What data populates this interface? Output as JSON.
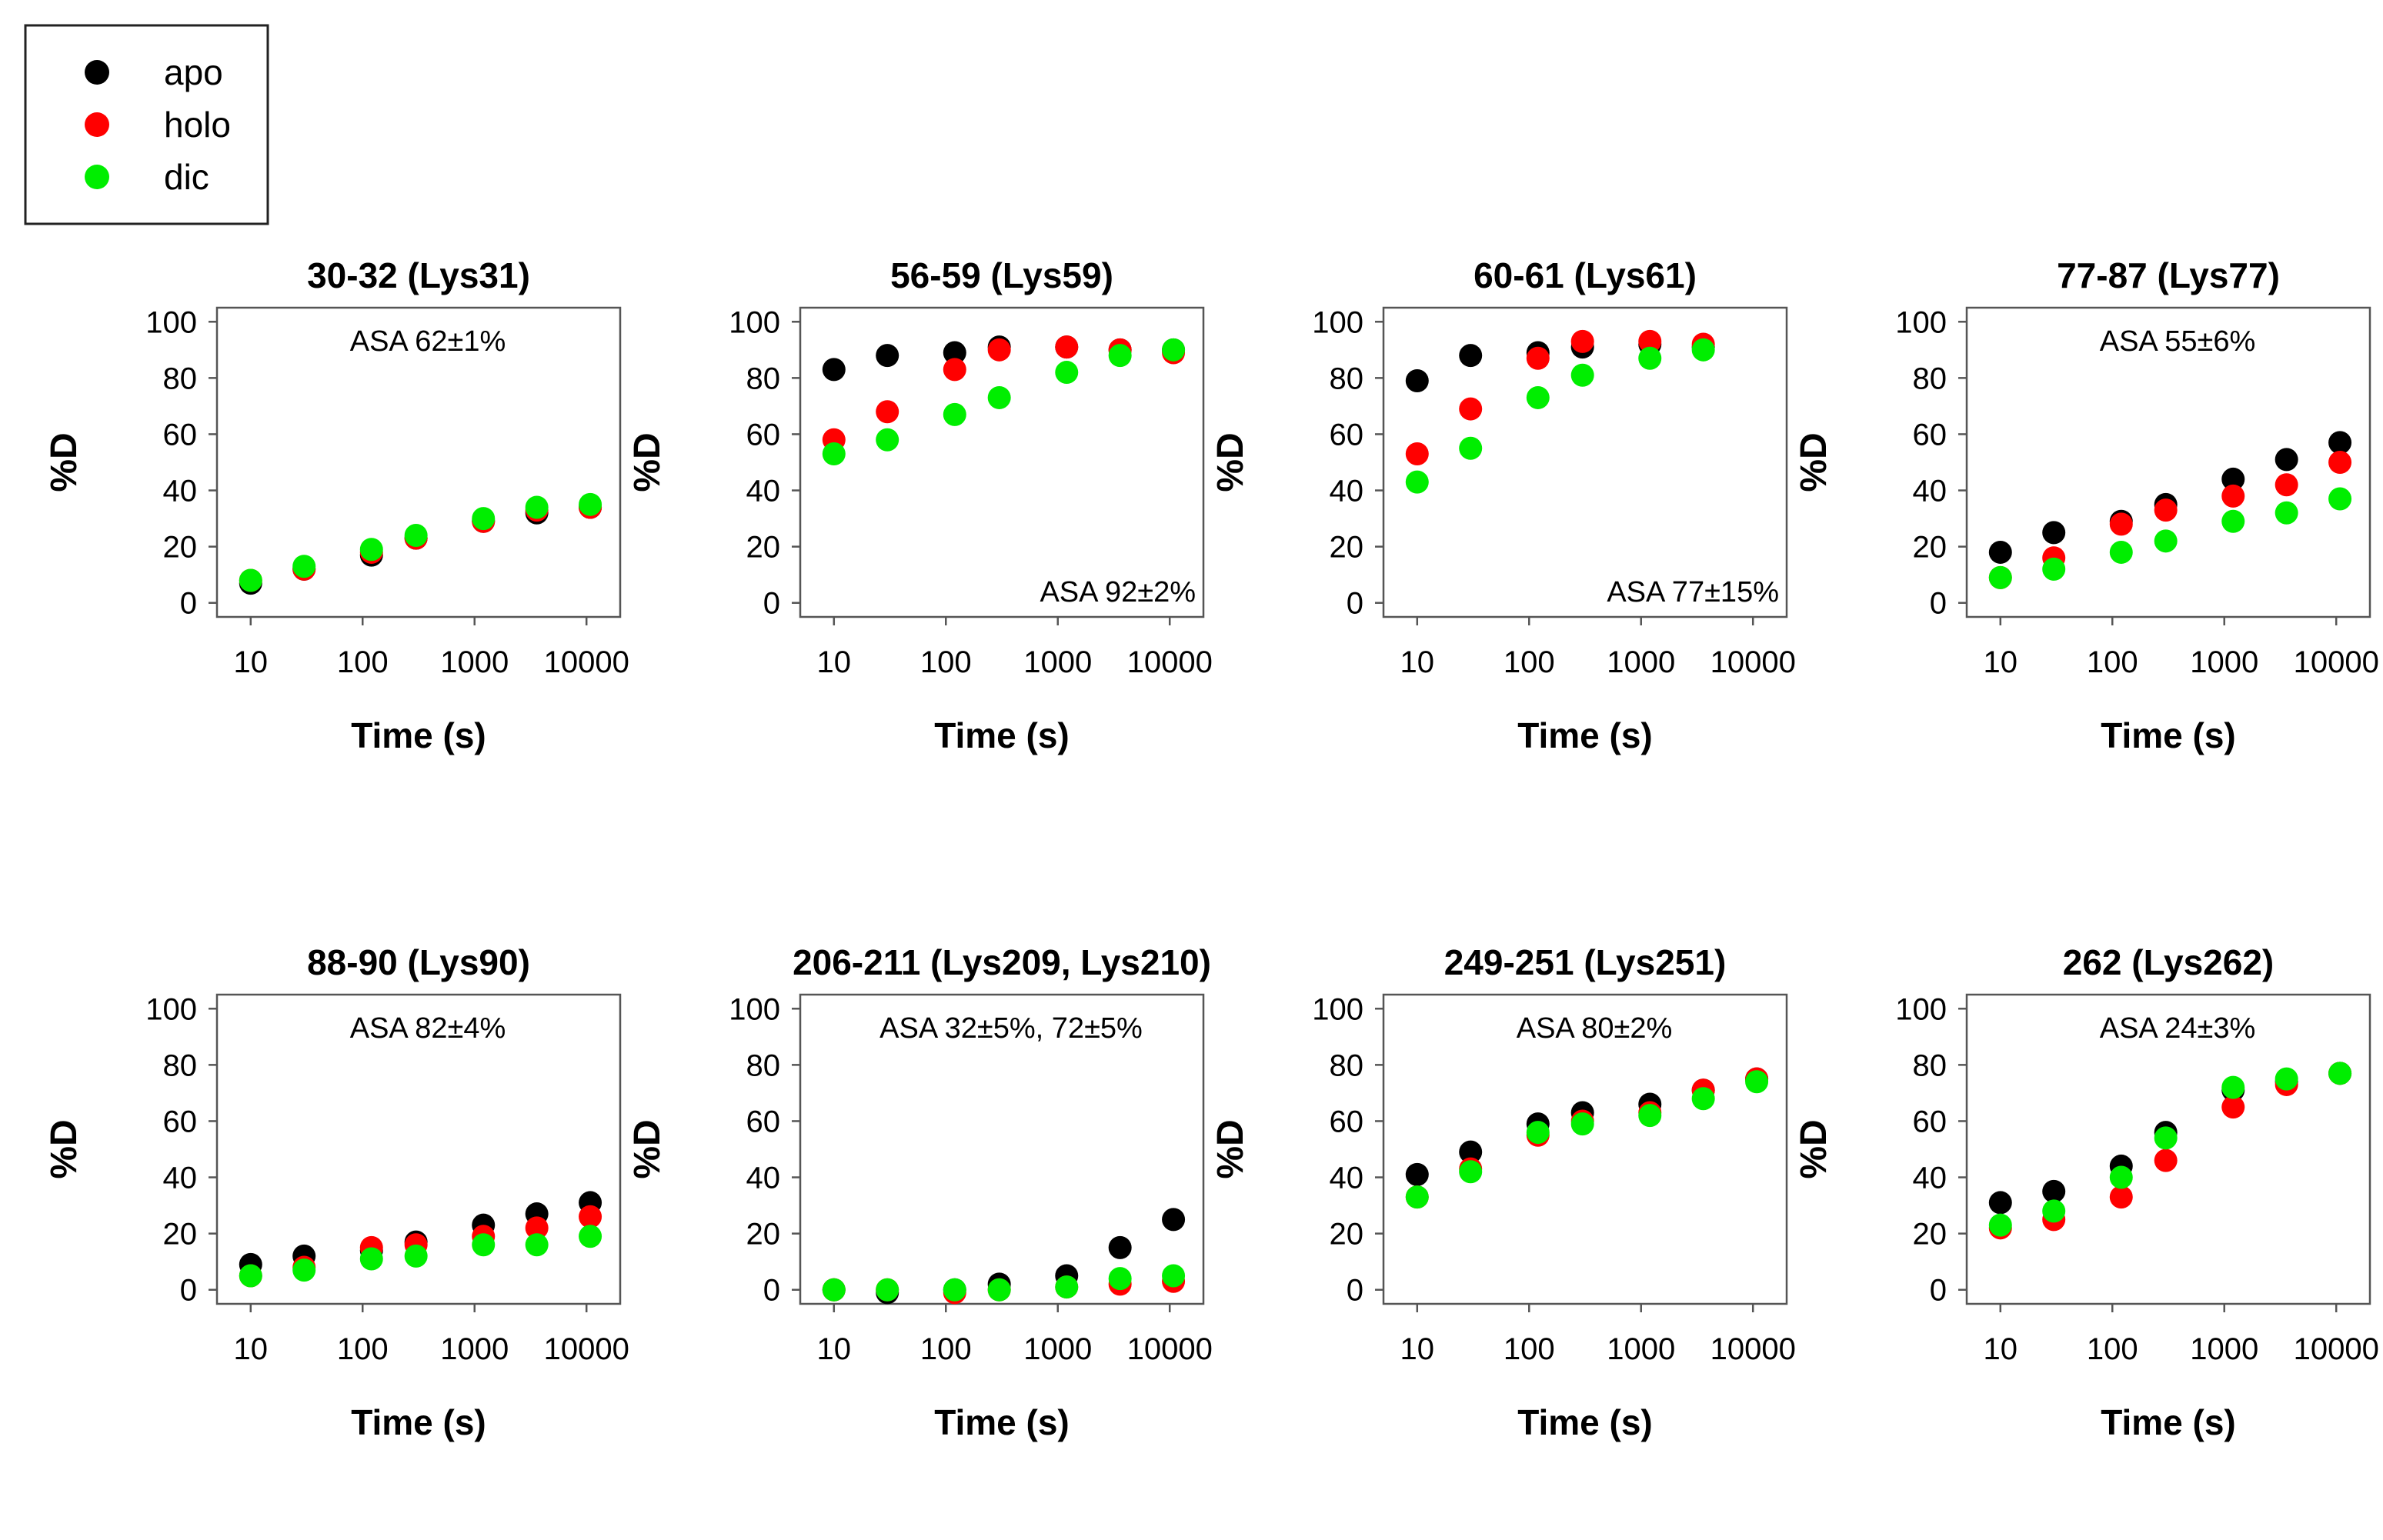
{
  "legend": {
    "items": [
      {
        "label": "apo",
        "color": "#000000"
      },
      {
        "label": "holo",
        "color": "#ff0000"
      },
      {
        "label": "dic",
        "color": "#00ee00"
      }
    ]
  },
  "chart_data": [
    {
      "type": "scatter",
      "title": "30-32 (Lys31)",
      "xlabel": "Time (s)",
      "ylabel": "%D",
      "xscale": "log",
      "xlim": [
        5,
        20000
      ],
      "ylim": [
        -5,
        105
      ],
      "xticks": [
        "10",
        "100",
        "1000",
        "10000"
      ],
      "yticks": [
        "0",
        "20",
        "40",
        "60",
        "80",
        "100"
      ],
      "annotation": "ASA 62±1%",
      "annotation_position": "top",
      "x": [
        10,
        30,
        120,
        300,
        1200,
        3600,
        10800
      ],
      "series": [
        {
          "name": "apo",
          "values": [
            7,
            12,
            17,
            23,
            29,
            32,
            34
          ]
        },
        {
          "name": "holo",
          "values": [
            8,
            12,
            18,
            23,
            29,
            33,
            34
          ]
        },
        {
          "name": "dic",
          "values": [
            8,
            13,
            19,
            24,
            30,
            34,
            35
          ]
        }
      ]
    },
    {
      "type": "scatter",
      "title": "56-59 (Lys59)",
      "xlabel": "Time (s)",
      "ylabel": "%D",
      "xscale": "log",
      "xlim": [
        5,
        20000
      ],
      "ylim": [
        -5,
        105
      ],
      "xticks": [
        "10",
        "100",
        "1000",
        "10000"
      ],
      "yticks": [
        "0",
        "20",
        "40",
        "60",
        "80",
        "100"
      ],
      "annotation": "ASA 92±2%",
      "annotation_position": "bottom-right",
      "x": [
        10,
        30,
        120,
        300,
        1200,
        3600,
        10800
      ],
      "series": [
        {
          "name": "apo",
          "values": [
            83,
            88,
            89,
            91,
            91,
            90,
            90
          ]
        },
        {
          "name": "holo",
          "values": [
            58,
            68,
            83,
            90,
            91,
            90,
            89
          ]
        },
        {
          "name": "dic",
          "values": [
            53,
            58,
            67,
            73,
            82,
            88,
            90
          ]
        }
      ]
    },
    {
      "type": "scatter",
      "title": "60-61 (Lys61)",
      "xlabel": "Time (s)",
      "ylabel": "%D",
      "xscale": "log",
      "xlim": [
        5,
        20000
      ],
      "ylim": [
        -5,
        105
      ],
      "xticks": [
        "10",
        "100",
        "1000",
        "10000"
      ],
      "yticks": [
        "0",
        "20",
        "40",
        "60",
        "80",
        "100"
      ],
      "annotation": "ASA 77±15%",
      "annotation_position": "bottom-right",
      "x": [
        10,
        30,
        120,
        300,
        1200,
        3600
      ],
      "series": [
        {
          "name": "apo",
          "values": [
            79,
            88,
            89,
            91,
            92,
            91
          ]
        },
        {
          "name": "holo",
          "values": [
            53,
            69,
            87,
            93,
            93,
            92
          ]
        },
        {
          "name": "dic",
          "values": [
            43,
            55,
            73,
            81,
            87,
            90
          ]
        }
      ]
    },
    {
      "type": "scatter",
      "title": "77-87 (Lys77)",
      "xlabel": "Time (s)",
      "ylabel": "%D",
      "xscale": "log",
      "xlim": [
        5,
        20000
      ],
      "ylim": [
        -5,
        105
      ],
      "xticks": [
        "10",
        "100",
        "1000",
        "10000"
      ],
      "yticks": [
        "0",
        "20",
        "40",
        "60",
        "80",
        "100"
      ],
      "annotation": "ASA 55±6%",
      "annotation_position": "top",
      "x": [
        10,
        30,
        120,
        300,
        1200,
        3600,
        10800
      ],
      "series": [
        {
          "name": "apo",
          "values": [
            18,
            25,
            29,
            35,
            44,
            51,
            57
          ]
        },
        {
          "name": "holo",
          "values": [
            9,
            16,
            28,
            33,
            38,
            42,
            50
          ]
        },
        {
          "name": "dic",
          "values": [
            9,
            12,
            18,
            22,
            29,
            32,
            37
          ]
        }
      ]
    },
    {
      "type": "scatter",
      "title": "88-90 (Lys90)",
      "xlabel": "Time (s)",
      "ylabel": "%D",
      "xscale": "log",
      "xlim": [
        5,
        20000
      ],
      "ylim": [
        -5,
        105
      ],
      "xticks": [
        "10",
        "100",
        "1000",
        "10000"
      ],
      "yticks": [
        "0",
        "20",
        "40",
        "60",
        "80",
        "100"
      ],
      "annotation": "ASA 82±4%",
      "annotation_position": "top",
      "x": [
        10,
        30,
        120,
        300,
        1200,
        3600,
        10800
      ],
      "series": [
        {
          "name": "apo",
          "values": [
            9,
            12,
            14,
            17,
            23,
            27,
            31
          ]
        },
        {
          "name": "holo",
          "values": [
            5,
            8,
            15,
            16,
            19,
            22,
            26
          ]
        },
        {
          "name": "dic",
          "values": [
            5,
            7,
            11,
            12,
            16,
            16,
            19
          ]
        }
      ]
    },
    {
      "type": "scatter",
      "title": "206-211 (Lys209, Lys210)",
      "xlabel": "Time (s)",
      "ylabel": "%D",
      "xscale": "log",
      "xlim": [
        5,
        20000
      ],
      "ylim": [
        -5,
        105
      ],
      "xticks": [
        "10",
        "100",
        "1000",
        "10000"
      ],
      "yticks": [
        "0",
        "20",
        "40",
        "60",
        "80",
        "100"
      ],
      "annotation": "ASA 32±5%, 72±5%",
      "annotation_position": "top",
      "x": [
        10,
        30,
        120,
        300,
        1200,
        3600,
        10800
      ],
      "series": [
        {
          "name": "apo",
          "values": [
            0,
            -1,
            0,
            2,
            5,
            15,
            25
          ]
        },
        {
          "name": "holo",
          "values": [
            0,
            0,
            -1,
            0,
            1,
            2,
            3
          ]
        },
        {
          "name": "dic",
          "values": [
            0,
            0,
            0,
            0,
            1,
            4,
            5
          ]
        }
      ]
    },
    {
      "type": "scatter",
      "title": "249-251 (Lys251)",
      "xlabel": "Time (s)",
      "ylabel": "%D",
      "xscale": "log",
      "xlim": [
        5,
        20000
      ],
      "ylim": [
        -5,
        105
      ],
      "xticks": [
        "10",
        "100",
        "1000",
        "10000"
      ],
      "yticks": [
        "0",
        "20",
        "40",
        "60",
        "80",
        "100"
      ],
      "annotation": "ASA 80±2%",
      "annotation_position": "top",
      "x": [
        10,
        30,
        120,
        300,
        1200,
        3600,
        10800
      ],
      "series": [
        {
          "name": "apo",
          "values": [
            41,
            49,
            59,
            63,
            66,
            71,
            75
          ]
        },
        {
          "name": "holo",
          "values": [
            33,
            43,
            55,
            60,
            63,
            71,
            75
          ]
        },
        {
          "name": "dic",
          "values": [
            33,
            42,
            56,
            59,
            62,
            68,
            74
          ]
        }
      ]
    },
    {
      "type": "scatter",
      "title": "262 (Lys262)",
      "xlabel": "Time (s)",
      "ylabel": "%D",
      "xscale": "log",
      "xlim": [
        5,
        20000
      ],
      "ylim": [
        -5,
        105
      ],
      "xticks": [
        "10",
        "100",
        "1000",
        "10000"
      ],
      "yticks": [
        "0",
        "20",
        "40",
        "60",
        "80",
        "100"
      ],
      "annotation": "ASA 24±3%",
      "annotation_position": "top",
      "x": [
        10,
        30,
        120,
        300,
        1200,
        3600,
        10800
      ],
      "series": [
        {
          "name": "apo",
          "values": [
            31,
            35,
            44,
            56,
            71,
            74,
            77
          ]
        },
        {
          "name": "holo",
          "values": [
            22,
            25,
            33,
            46,
            65,
            73,
            77
          ]
        },
        {
          "name": "dic",
          "values": [
            23,
            28,
            40,
            54,
            72,
            75,
            77
          ]
        }
      ]
    }
  ]
}
